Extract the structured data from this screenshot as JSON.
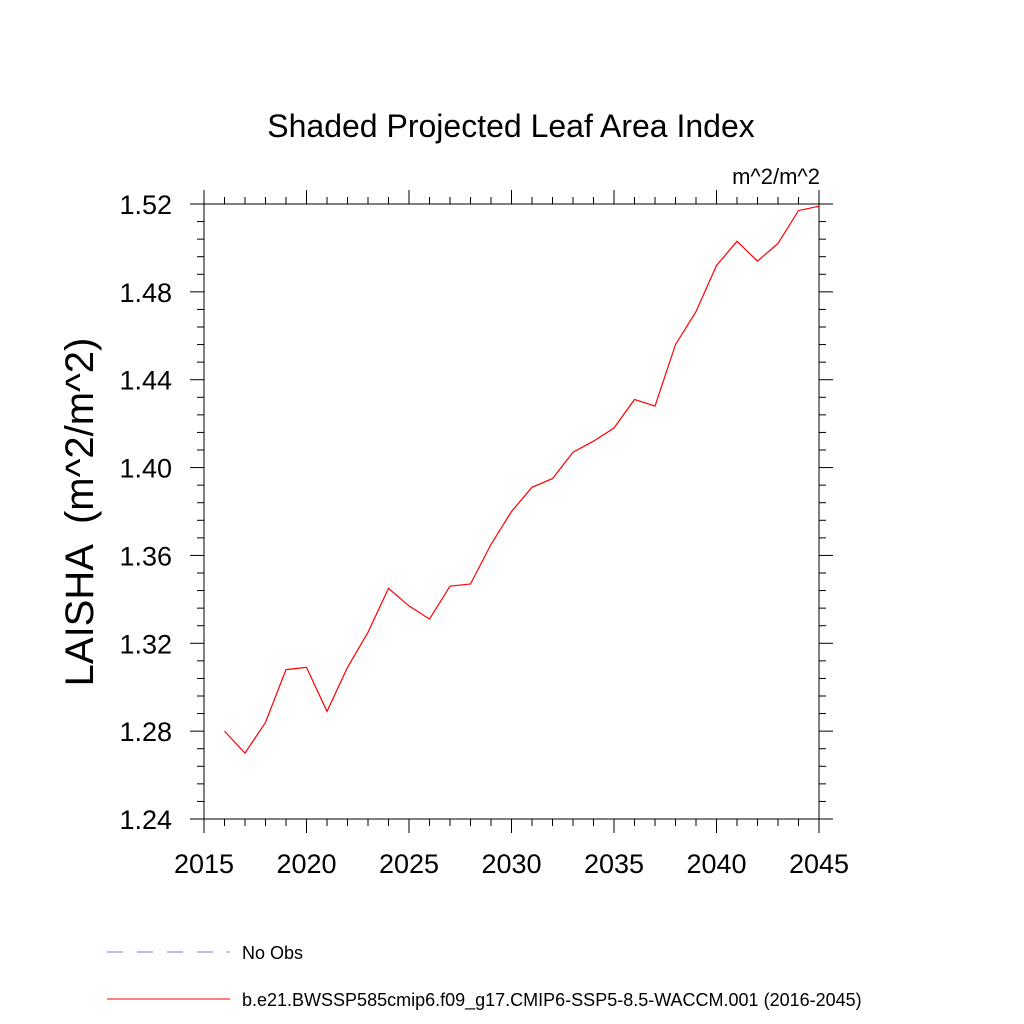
{
  "chart_data": {
    "type": "line",
    "title": "Shaded Projected Leaf Area Index",
    "units_label": "m^2/m^2",
    "ylabel": "LAISHA  (m^2/m^2)",
    "xlabel": "",
    "xlim": [
      2015,
      2045
    ],
    "ylim": [
      1.24,
      1.52
    ],
    "x_ticks": [
      2015,
      2020,
      2025,
      2030,
      2035,
      2040,
      2045
    ],
    "x_tick_labels": [
      "2015",
      "2020",
      "2025",
      "2030",
      "2035",
      "2040",
      "2045"
    ],
    "y_ticks": [
      1.24,
      1.28,
      1.32,
      1.36,
      1.4,
      1.44,
      1.48,
      1.52
    ],
    "y_tick_labels": [
      "1.24",
      "1.28",
      "1.32",
      "1.36",
      "1.40",
      "1.44",
      "1.48",
      "1.52"
    ],
    "grid": false,
    "legend_placement": "bottom",
    "series": [
      {
        "name": "b.e21.BWSSP585cmip6.f09_g17.CMIP6-SSP5-8.5-WACCM.001 (2016-2045)",
        "color": "#ff0000",
        "style": "solid",
        "x": [
          2016,
          2017,
          2018,
          2019,
          2020,
          2021,
          2022,
          2023,
          2024,
          2025,
          2026,
          2027,
          2028,
          2029,
          2030,
          2031,
          2032,
          2033,
          2034,
          2035,
          2036,
          2037,
          2038,
          2039,
          2040,
          2041,
          2042,
          2043,
          2044,
          2045
        ],
        "values": [
          1.28,
          1.27,
          1.284,
          1.308,
          1.309,
          1.289,
          1.309,
          1.325,
          1.345,
          1.337,
          1.331,
          1.346,
          1.347,
          1.365,
          1.38,
          1.391,
          1.395,
          1.407,
          1.412,
          1.418,
          1.431,
          1.428,
          1.456,
          1.471,
          1.492,
          1.503,
          1.494,
          1.502,
          1.517,
          1.519
        ]
      }
    ],
    "legend": [
      {
        "label": "No Obs",
        "color": "#7b7bc8",
        "style": "dashed"
      },
      {
        "label": "b.e21.BWSSP585cmip6.f09_g17.CMIP6-SSP5-8.5-WACCM.001 (2016-2045)",
        "color": "#ff0000",
        "style": "solid"
      }
    ]
  }
}
